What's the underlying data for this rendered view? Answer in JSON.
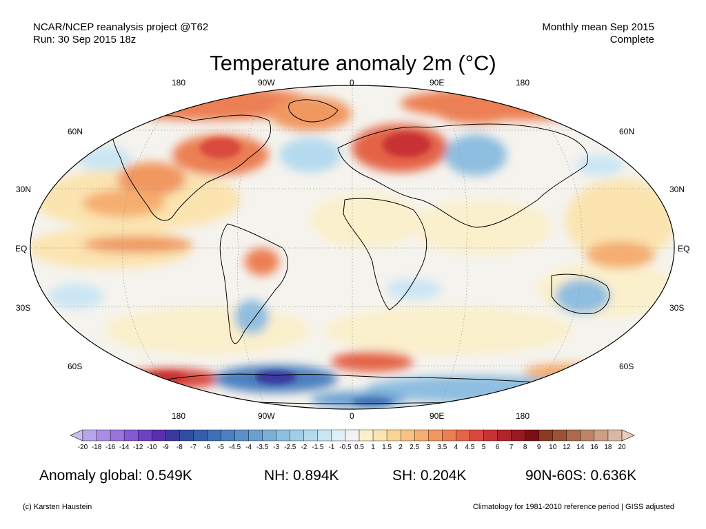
{
  "header": {
    "left_line1": "NCAR/NCEP reanalysis project @T62",
    "left_line2": "Run: 30 Sep 2015 18z",
    "right_line1": "Monthly mean Sep 2015",
    "right_line2": "Complete"
  },
  "title": "Temperature anomaly 2m (°C)",
  "axes": {
    "lon_labels": [
      "180",
      "90W",
      "0",
      "90E",
      "180"
    ],
    "lat_labels": [
      "60N",
      "30N",
      "EQ",
      "30S",
      "60S"
    ]
  },
  "colorbar": {
    "labels": [
      "-20",
      "-18",
      "-16",
      "-14",
      "-12",
      "-10",
      "-9",
      "-8",
      "-7",
      "-6",
      "-5",
      "-4.5",
      "-4",
      "-3.5",
      "-3",
      "-2.5",
      "-2",
      "-1.5",
      "-1",
      "-0.5",
      "0.5",
      "1",
      "1.5",
      "2",
      "2.5",
      "3",
      "3.5",
      "4",
      "4.5",
      "5",
      "6",
      "7",
      "8",
      "9",
      "10",
      "12",
      "14",
      "16",
      "18",
      "20"
    ],
    "colors": [
      "#cbbfee",
      "#b8a6ea",
      "#a98ee4",
      "#9874dc",
      "#845ad2",
      "#6f40c4",
      "#5a2eac",
      "#3a3a9e",
      "#2f4e9e",
      "#365fa9",
      "#3f6fb4",
      "#4c80bf",
      "#5b90c8",
      "#6aa0d0",
      "#7bafd8",
      "#8ebee0",
      "#a2cde7",
      "#b5daee",
      "#cae6f4",
      "#def0f8",
      "#f3f3f3",
      "#fbf0cc",
      "#fbe4b0",
      "#f9d498",
      "#f7c283",
      "#f5ae70",
      "#f19760",
      "#ec7f52",
      "#e46447",
      "#d9483e",
      "#c73334",
      "#b0242b",
      "#981922",
      "#7c0f16",
      "#8a3b22",
      "#9c5236",
      "#ac6a4c",
      "#bc8468",
      "#cb9f86",
      "#d9b8a3",
      "#e7cdbb"
    ]
  },
  "stats": {
    "global": "Anomaly global: 0.549K",
    "nh": "NH: 0.894K",
    "sh": "SH: 0.204K",
    "arctic": "90N-60S: 0.636K"
  },
  "footer": {
    "left": "(c) Karsten Haustein",
    "right": "Climatology for 1981-2010 reference period | GISS adjusted"
  }
}
